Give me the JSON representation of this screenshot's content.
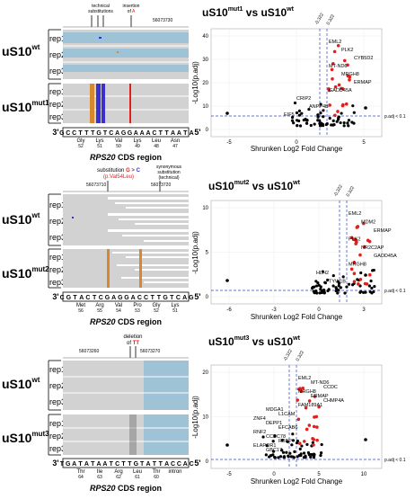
{
  "panels": [
    {
      "id": "mut1",
      "annotations": {
        "technical": "technical\nsubstitutions",
        "insertion_prefix": "insertion",
        "insertion_of": "of ",
        "insertion_base": "A",
        "coord_left": "",
        "coord_right": "56073730"
      },
      "groups": [
        {
          "label": "uS10",
          "sup": "wt",
          "reps": [
            "rep1",
            "rep2",
            "rep3"
          ]
        },
        {
          "label": "uS10",
          "sup": "mut1",
          "reps": [
            "rep1",
            "rep2",
            "rep3"
          ]
        }
      ],
      "sequence": [
        "3'",
        "G",
        "C",
        "C",
        "T",
        "T",
        "T",
        "G",
        "T",
        "C",
        "A",
        "G",
        "G",
        "A",
        "A",
        "A",
        "C",
        "T",
        "T",
        "A",
        "A",
        "T",
        "A",
        "5'"
      ],
      "aa": [
        {
          "name": "Gly",
          "num": "52"
        },
        {
          "name": "Lys",
          "num": "51"
        },
        {
          "name": "Val",
          "num": "50"
        },
        {
          "name": "Lys",
          "num": "49"
        },
        {
          "name": "Leu",
          "num": "48"
        },
        {
          "name": "Asn",
          "num": "47"
        }
      ],
      "gene_italic": "RPS20",
      "cds": " CDS region",
      "volcano": {
        "title_left": "uS10",
        "title_left_sup": "mut1",
        "vs": "vs",
        "title_right": "uS10",
        "title_right_sup": "wt",
        "vline_labels": [
          "-0.322",
          "0.322"
        ],
        "ylabel": "-Log10(p.adj)",
        "xlabel": "Shrunken Log2 Fold Change",
        "padj": "p.adj < 0.1",
        "xticks": [
          "-5",
          "0",
          "5"
        ],
        "yticks": [
          "0",
          "10",
          "20",
          "30",
          "40"
        ],
        "genes": [
          "EML2",
          "PLK2",
          "CYB5D2",
          "MT-ND6",
          "MRGH8",
          "ERMAP",
          "GADD45A",
          "CRIP2",
          "ANPP4B",
          "EIF5"
        ]
      }
    },
    {
      "id": "mut2",
      "annotations": {
        "substitution": "substitution ",
        "sub_from": "G",
        "sub_arrow": " > ",
        "sub_to": "C",
        "protein_change": "(p.Val54Leu)",
        "synonymous": "synonymous\nsubstitution\n(technical)",
        "coord_left": "56073710",
        "coord_right": "56073720"
      },
      "groups": [
        {
          "label": "uS10",
          "sup": "wt",
          "reps": [
            "rep1",
            "rep2",
            "rep3"
          ]
        },
        {
          "label": "uS10",
          "sup": "mut2",
          "reps": [
            "rep1",
            "rep2",
            "rep3"
          ]
        }
      ],
      "sequence": [
        "3'",
        "C",
        "G",
        "T",
        "A",
        "C",
        "T",
        "C",
        "G",
        "A",
        "G",
        "G",
        "A",
        "C",
        "C",
        "T",
        "T",
        "G",
        "T",
        "C",
        "A",
        "G",
        "5'"
      ],
      "aa": [
        {
          "name": "Met",
          "num": "56"
        },
        {
          "name": "Arg",
          "num": "55"
        },
        {
          "name": "Val",
          "num": "54"
        },
        {
          "name": "Pro",
          "num": "53"
        },
        {
          "name": "Gly",
          "num": "52"
        },
        {
          "name": "Lys",
          "num": "51"
        }
      ],
      "gene_italic": "RPS20",
      "cds": " CDS region",
      "volcano": {
        "title_left": "uS10",
        "title_left_sup": "mut2",
        "vs": "vs",
        "title_right": "uS10",
        "title_right_sup": "wt",
        "vline_labels": [
          "-0.322",
          "0.322"
        ],
        "ylabel": "-Log10(p.adj)",
        "xlabel": "Shrunken Log2 Fold Change",
        "padj": "p.adj < 0.1",
        "xticks": [
          "-6",
          "-3",
          "0",
          "3"
        ],
        "yticks": [
          "0",
          "5",
          "10"
        ],
        "genes": [
          "EML2",
          "MDM2",
          "ERMAP",
          "PLK2",
          "NR2C2AP",
          "GADD45A",
          "MRGH8",
          "HLH2",
          "TYW1B"
        ]
      }
    },
    {
      "id": "mut3",
      "annotations": {
        "coord_left": "56073260",
        "deletion": "deletion",
        "deletion_of": "of ",
        "deletion_base": "TT",
        "coord_right": "56073270"
      },
      "groups": [
        {
          "label": "uS10",
          "sup": "wt",
          "reps": [
            "rep1",
            "rep2",
            "rep3"
          ]
        },
        {
          "label": "uS10",
          "sup": "mut3",
          "reps": [
            "rep1",
            "rep2",
            "rep3"
          ]
        }
      ],
      "sequence": [
        "3'",
        "T",
        "G",
        "A",
        "T",
        "A",
        "T",
        "A",
        "A",
        "T",
        "C",
        "T",
        "T",
        "G",
        "T",
        "A",
        "T",
        "T",
        "A",
        "C",
        "C",
        "A",
        "C",
        "5'"
      ],
      "aa": [
        {
          "name": "Thr",
          "num": "64"
        },
        {
          "name": "Ile",
          "num": "63"
        },
        {
          "name": "Arg",
          "num": "62"
        },
        {
          "name": "Leu",
          "num": "61"
        },
        {
          "name": "Thr",
          "num": "60"
        },
        {
          "name": "intron",
          "num": ""
        }
      ],
      "gene_italic": "RPS20",
      "cds": " CDS region",
      "volcano": {
        "title_left": "uS10",
        "title_left_sup": "mut3",
        "vs": "vs",
        "title_right": "uS10",
        "title_right_sup": "wt",
        "vline_labels": [
          "-0.322",
          "0.322"
        ],
        "ylabel": "-Log10(p.adj)",
        "xlabel": "Shrunken Log2 Fold Change",
        "padj": "p.adj < 0.1",
        "xticks": [
          "-5",
          "0",
          "5",
          "10"
        ],
        "yticks": [
          "0",
          "10",
          "20"
        ],
        "genes": [
          "EML2",
          "MT-ND6",
          "CCDC",
          "MRGH8",
          "ERMAP",
          "CHMP4A",
          "FAM189A1",
          "MDGA1",
          "L1CAM",
          "ZNF4",
          "DEPP1",
          "EFCAB6",
          "RNF2",
          "CCDC78",
          "RBBP",
          "ELAPOR1",
          "GBC17"
        ]
      }
    }
  ],
  "colors": {
    "wt_bg": "#d2d2d2",
    "blue_band": "#9ec2d6",
    "orange": "#d7882e",
    "purple": "#3b2fd0",
    "red_point": "#e0201c",
    "vline": "#3344cc"
  }
}
